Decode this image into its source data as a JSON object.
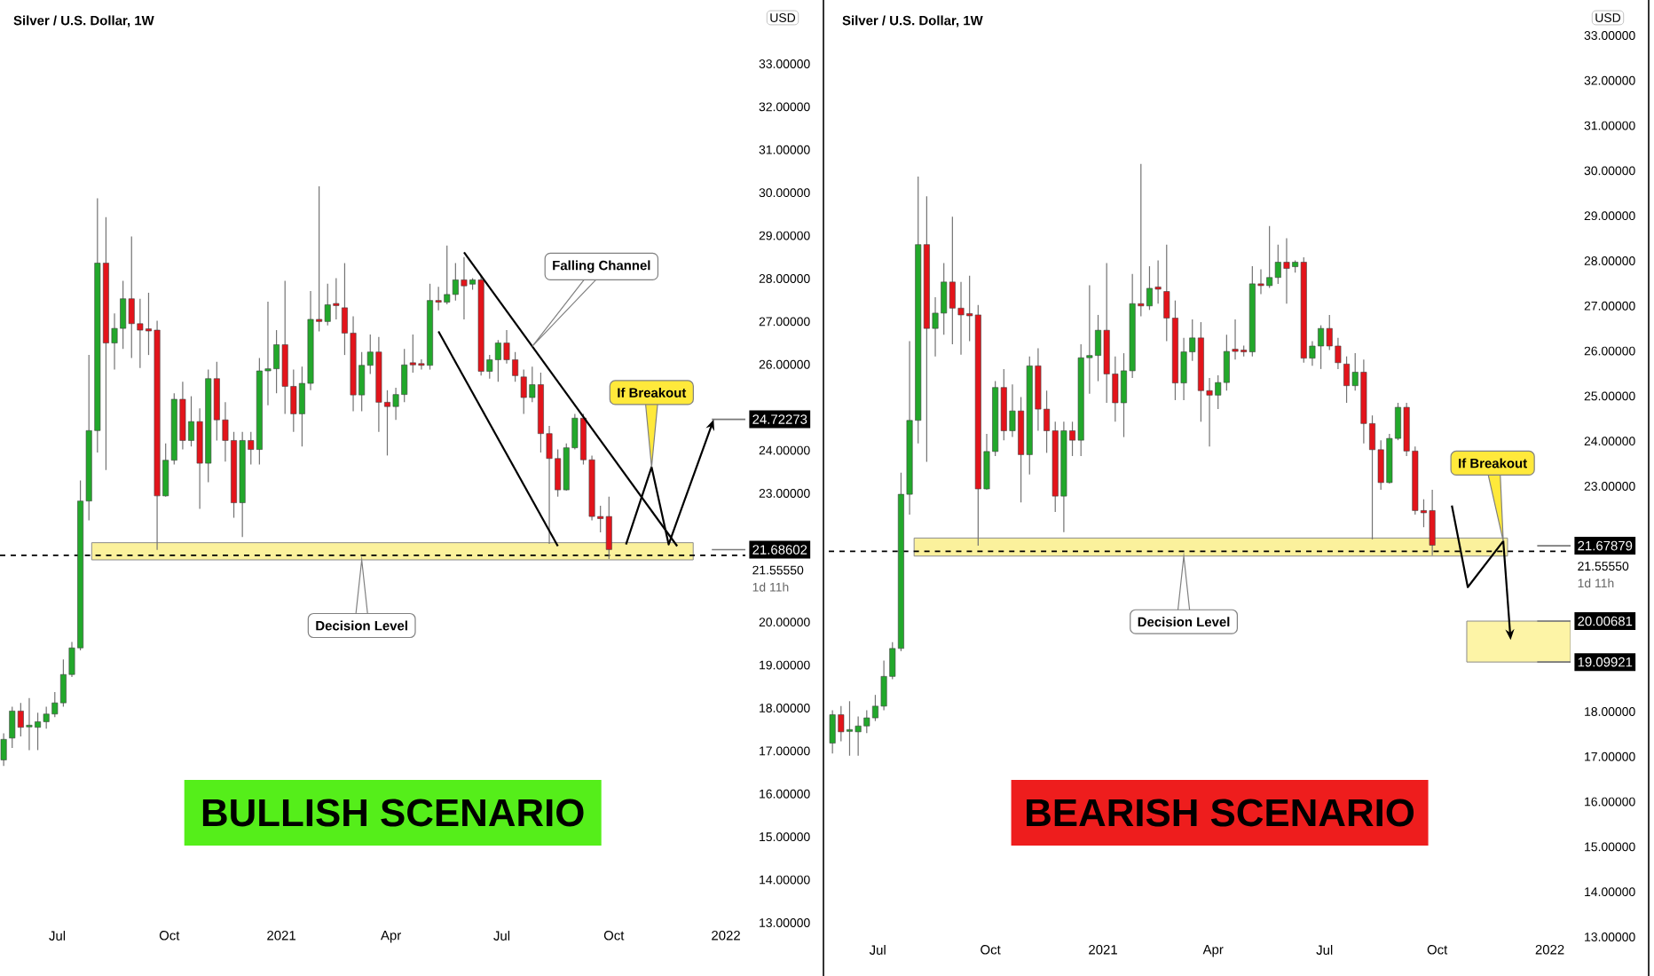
{
  "chart_data": [
    {
      "type": "candlestick",
      "title": "Silver / U.S. Dollar, 1W",
      "x": [
        "2020-05-18",
        "2020-05-25",
        "2020-06-01",
        "2020-06-08",
        "2020-06-15",
        "2020-06-22",
        "2020-06-29",
        "2020-07-06",
        "2020-07-13",
        "2020-07-20",
        "2020-07-27",
        "2020-08-03",
        "2020-08-10",
        "2020-08-17",
        "2020-08-24",
        "2020-08-31",
        "2020-09-07",
        "2020-09-14",
        "2020-09-21",
        "2020-09-28",
        "2020-10-05",
        "2020-10-12",
        "2020-10-19",
        "2020-10-26",
        "2020-11-02",
        "2020-11-09",
        "2020-11-16",
        "2020-11-23",
        "2020-11-30",
        "2020-12-07",
        "2020-12-14",
        "2020-12-21",
        "2020-12-28",
        "2021-01-04",
        "2021-01-11",
        "2021-01-18",
        "2021-01-25",
        "2021-02-01",
        "2021-02-08",
        "2021-02-15",
        "2021-02-22",
        "2021-03-01",
        "2021-03-08",
        "2021-03-15",
        "2021-03-22",
        "2021-03-29",
        "2021-04-05",
        "2021-04-12",
        "2021-04-19",
        "2021-04-26",
        "2021-05-03",
        "2021-05-10",
        "2021-05-17",
        "2021-05-24",
        "2021-05-31",
        "2021-06-07",
        "2021-06-14",
        "2021-06-21",
        "2021-06-28",
        "2021-07-05",
        "2021-07-12",
        "2021-07-19",
        "2021-07-26",
        "2021-08-02",
        "2021-08-09",
        "2021-08-16",
        "2021-08-23",
        "2021-08-30",
        "2021-09-06",
        "2021-09-13",
        "2021-09-20",
        "2021-09-27"
      ],
      "ohlc": [
        [
          16.79,
          17.41,
          16.65,
          17.27
        ],
        [
          17.3,
          18.03,
          17.07,
          17.93
        ],
        [
          17.93,
          18.12,
          17.34,
          17.55
        ],
        [
          17.56,
          18.23,
          17.02,
          17.6
        ],
        [
          17.55,
          17.89,
          17.02,
          17.68
        ],
        [
          17.68,
          18.03,
          17.52,
          17.86
        ],
        [
          17.86,
          18.37,
          17.79,
          18.12
        ],
        [
          18.12,
          19.13,
          18.03,
          18.78
        ],
        [
          18.78,
          19.54,
          18.72,
          19.4
        ],
        [
          19.4,
          23.3,
          19.34,
          22.82
        ],
        [
          22.82,
          26.22,
          22.37,
          24.46
        ],
        [
          24.46,
          29.87,
          23.95,
          28.36
        ],
        [
          28.36,
          29.43,
          23.54,
          26.5
        ],
        [
          26.5,
          27.19,
          25.88,
          26.84
        ],
        [
          26.84,
          27.95,
          26.36,
          27.53
        ],
        [
          27.53,
          28.98,
          26.15,
          26.95
        ],
        [
          26.95,
          27.53,
          25.92,
          26.8
        ],
        [
          26.83,
          27.67,
          26.22,
          26.78
        ],
        [
          26.8,
          27.02,
          21.68,
          22.94
        ],
        [
          22.94,
          24.16,
          22.92,
          23.77
        ],
        [
          23.77,
          25.33,
          23.67,
          25.19
        ],
        [
          25.19,
          25.6,
          24.02,
          24.23
        ],
        [
          24.23,
          25.26,
          24.09,
          24.67
        ],
        [
          24.67,
          24.98,
          22.64,
          23.7
        ],
        [
          23.7,
          25.88,
          23.26,
          25.67
        ],
        [
          25.67,
          26.06,
          24.23,
          24.71
        ],
        [
          24.71,
          25.12,
          23.74,
          24.23
        ],
        [
          24.23,
          24.43,
          22.43,
          22.78
        ],
        [
          22.78,
          24.43,
          21.98,
          24.23
        ],
        [
          24.23,
          24.43,
          23.67,
          24.02
        ],
        [
          24.02,
          26.15,
          23.67,
          25.85
        ],
        [
          25.85,
          27.46,
          25.05,
          25.9
        ],
        [
          25.9,
          26.8,
          25.33,
          26.46
        ],
        [
          26.46,
          27.95,
          24.85,
          25.49
        ],
        [
          25.49,
          25.88,
          24.43,
          24.85
        ],
        [
          24.85,
          25.95,
          24.09,
          25.56
        ],
        [
          25.56,
          27.71,
          25.4,
          27.05
        ],
        [
          27.05,
          30.15,
          26.77,
          27.0
        ],
        [
          27.0,
          27.88,
          26.91,
          27.39
        ],
        [
          27.42,
          28.01,
          27.05,
          27.37
        ],
        [
          27.32,
          28.36,
          26.22,
          26.73
        ],
        [
          26.73,
          27.12,
          24.91,
          25.29
        ],
        [
          25.29,
          26.29,
          24.91,
          25.98
        ],
        [
          25.98,
          26.7,
          25.78,
          26.29
        ],
        [
          26.29,
          26.64,
          24.43,
          25.12
        ],
        [
          25.12,
          25.4,
          23.88,
          25.02
        ],
        [
          25.02,
          25.46,
          24.71,
          25.3
        ],
        [
          25.3,
          26.36,
          25.12,
          25.99
        ],
        [
          26.04,
          26.7,
          25.81,
          25.99
        ],
        [
          26.02,
          26.12,
          25.88,
          25.98
        ],
        [
          25.98,
          27.88,
          25.88,
          27.49
        ],
        [
          27.49,
          27.81,
          27.26,
          27.45
        ],
        [
          27.45,
          28.77,
          27.4,
          27.63
        ],
        [
          27.63,
          28.36,
          27.49,
          27.97
        ],
        [
          27.97,
          28.5,
          27.05,
          27.83
        ],
        [
          27.87,
          28.01,
          27.74,
          27.97
        ],
        [
          27.97,
          28.08,
          25.74,
          25.84
        ],
        [
          25.84,
          26.22,
          25.67,
          26.11
        ],
        [
          26.11,
          26.57,
          25.6,
          26.5
        ],
        [
          26.5,
          26.8,
          26.02,
          26.11
        ],
        [
          26.11,
          26.29,
          25.6,
          25.74
        ],
        [
          25.71,
          25.88,
          24.85,
          25.23
        ],
        [
          25.23,
          25.95,
          25.12,
          25.53
        ],
        [
          25.53,
          25.81,
          23.95,
          24.39
        ],
        [
          24.39,
          24.57,
          21.82,
          23.81
        ],
        [
          23.81,
          24.02,
          22.92,
          23.08
        ],
        [
          23.08,
          24.16,
          23.06,
          24.06
        ],
        [
          24.06,
          24.85,
          24.02,
          24.75
        ],
        [
          24.75,
          24.85,
          23.67,
          23.78
        ],
        [
          23.78,
          23.88,
          22.37,
          22.46
        ],
        [
          22.46,
          22.71,
          22.09,
          22.41
        ],
        [
          22.46,
          22.92,
          21.47,
          21.69
        ]
      ],
      "series": [
        {
          "type": "line",
          "color": "#000000",
          "x": [
            "2021-05-31",
            "2021-11-22"
          ],
          "values": [
            28.61,
            21.77
          ]
        },
        {
          "type": "line",
          "color": "#000000",
          "x": [
            "2021-05-10",
            "2021-08-16"
          ],
          "values": [
            26.77,
            21.77
          ]
        },
        {
          "type": "line",
          "color": "#000000",
          "x": [
            "2021-10-11",
            "2021-11-01",
            "2021-11-15",
            "2021-12-22"
          ],
          "values": [
            21.81,
            23.61,
            21.81,
            24.72
          ]
        }
      ],
      "xlim": [
        "2020-05-15",
        "2022-01-17"
      ],
      "xticks": [
        {
          "value": "2020-07-01",
          "label": "Jul"
        },
        {
          "value": "2020-10-01",
          "label": "Oct"
        },
        {
          "value": "2021-01-01",
          "label": "2021"
        },
        {
          "value": "2021-04-01",
          "label": "Apr"
        },
        {
          "value": "2021-07-01",
          "label": "Jul"
        },
        {
          "value": "2021-10-01",
          "label": "Oct"
        },
        {
          "value": "2022-01-01",
          "label": "2022"
        }
      ],
      "ylim": [
        13,
        33
      ],
      "yticks": [
        {
          "value": 13,
          "label": "13.00000"
        },
        {
          "value": 14,
          "label": "14.00000"
        },
        {
          "value": 15,
          "label": "15.00000"
        },
        {
          "value": 16,
          "label": "16.00000"
        },
        {
          "value": 17,
          "label": "17.00000"
        },
        {
          "value": 18,
          "label": "18.00000"
        },
        {
          "value": 19,
          "label": "19.00000"
        },
        {
          "value": 20,
          "label": "20.00000"
        },
        {
          "value": 23,
          "label": "23.00000"
        },
        {
          "value": 24,
          "label": "24.00000"
        },
        {
          "value": 26,
          "label": "26.00000"
        },
        {
          "value": 27,
          "label": "27.00000"
        },
        {
          "value": 28,
          "label": "28.00000"
        },
        {
          "value": 29,
          "label": "29.00000"
        },
        {
          "value": 30,
          "label": "30.00000"
        },
        {
          "value": 31,
          "label": "31.00000"
        },
        {
          "value": 32,
          "label": "32.00000"
        },
        {
          "value": 33,
          "label": "33.00000"
        }
      ],
      "ref_lines": [
        {
          "axis": "y",
          "value": 21.5555,
          "label": "21.55550",
          "color": "#000000",
          "line_style": "dashed"
        },
        {
          "axis": "y",
          "value": 24.72273,
          "label": "24.72273",
          "color": "#787878",
          "line_style": "solid"
        },
        {
          "axis": "y",
          "value": 21.68602,
          "label": "21.68602",
          "color": "#787878",
          "line_style": "solid"
        }
      ],
      "bands": [
        {
          "axis": "y",
          "from": 21.45,
          "to": 21.85,
          "color": "#fbf19c"
        }
      ],
      "annotations": [
        "Falling Channel",
        {
          "text": "If Breakout",
          "x": "2021-11-01",
          "y": 23.61
        },
        {
          "text": "Decision Level",
          "x": "2021-03-08",
          "y": 21.45
        },
        "BULLISH SCENARIO",
        "1d 11h",
        "USD"
      ]
    },
    {
      "type": "candlestick",
      "title": "Silver / U.S. Dollar, 1W",
      "x": [
        "2020-05-25",
        "2020-06-01",
        "2020-06-08",
        "2020-06-15",
        "2020-06-22",
        "2020-06-29",
        "2020-07-06",
        "2020-07-13",
        "2020-07-20",
        "2020-07-27",
        "2020-08-03",
        "2020-08-10",
        "2020-08-17",
        "2020-08-24",
        "2020-08-31",
        "2020-09-07",
        "2020-09-14",
        "2020-09-21",
        "2020-09-28",
        "2020-10-05",
        "2020-10-12",
        "2020-10-19",
        "2020-10-26",
        "2020-11-02",
        "2020-11-09",
        "2020-11-16",
        "2020-11-23",
        "2020-11-30",
        "2020-12-07",
        "2020-12-14",
        "2020-12-21",
        "2020-12-28",
        "2021-01-04",
        "2021-01-11",
        "2021-01-18",
        "2021-01-25",
        "2021-02-01",
        "2021-02-08",
        "2021-02-15",
        "2021-02-22",
        "2021-03-01",
        "2021-03-08",
        "2021-03-15",
        "2021-03-22",
        "2021-03-29",
        "2021-04-05",
        "2021-04-12",
        "2021-04-19",
        "2021-04-26",
        "2021-05-03",
        "2021-05-10",
        "2021-05-17",
        "2021-05-24",
        "2021-05-31",
        "2021-06-07",
        "2021-06-14",
        "2021-06-21",
        "2021-06-28",
        "2021-07-05",
        "2021-07-12",
        "2021-07-19",
        "2021-07-26",
        "2021-08-02",
        "2021-08-09",
        "2021-08-16",
        "2021-08-23",
        "2021-08-30",
        "2021-09-06",
        "2021-09-13",
        "2021-09-20",
        "2021-09-27"
      ],
      "ohlc": [
        [
          17.3,
          18.03,
          17.07,
          17.93
        ],
        [
          17.93,
          18.12,
          17.34,
          17.55
        ],
        [
          17.56,
          18.23,
          17.02,
          17.6
        ],
        [
          17.55,
          17.89,
          17.02,
          17.68
        ],
        [
          17.68,
          18.03,
          17.52,
          17.86
        ],
        [
          17.86,
          18.37,
          17.79,
          18.12
        ],
        [
          18.12,
          19.13,
          18.03,
          18.78
        ],
        [
          18.78,
          19.54,
          18.72,
          19.4
        ],
        [
          19.4,
          23.3,
          19.34,
          22.82
        ],
        [
          22.82,
          26.22,
          22.37,
          24.46
        ],
        [
          24.46,
          29.87,
          23.95,
          28.36
        ],
        [
          28.36,
          29.43,
          23.54,
          26.5
        ],
        [
          26.5,
          27.19,
          25.88,
          26.84
        ],
        [
          26.84,
          27.95,
          26.36,
          27.53
        ],
        [
          27.53,
          28.98,
          26.15,
          26.95
        ],
        [
          26.95,
          27.53,
          25.92,
          26.8
        ],
        [
          26.83,
          27.67,
          26.22,
          26.78
        ],
        [
          26.8,
          27.02,
          21.68,
          22.94
        ],
        [
          22.94,
          24.16,
          22.92,
          23.77
        ],
        [
          23.77,
          25.33,
          23.67,
          25.19
        ],
        [
          25.19,
          25.6,
          24.02,
          24.23
        ],
        [
          24.23,
          25.26,
          24.09,
          24.67
        ],
        [
          24.67,
          24.98,
          22.64,
          23.7
        ],
        [
          23.7,
          25.88,
          23.26,
          25.67
        ],
        [
          25.67,
          26.06,
          24.23,
          24.71
        ],
        [
          24.71,
          25.12,
          23.74,
          24.23
        ],
        [
          24.23,
          24.43,
          22.43,
          22.78
        ],
        [
          22.78,
          24.43,
          21.98,
          24.23
        ],
        [
          24.23,
          24.43,
          23.67,
          24.02
        ],
        [
          24.02,
          26.15,
          23.67,
          25.85
        ],
        [
          25.85,
          27.46,
          25.05,
          25.9
        ],
        [
          25.9,
          26.8,
          25.33,
          26.46
        ],
        [
          26.46,
          27.95,
          24.85,
          25.49
        ],
        [
          25.49,
          25.88,
          24.43,
          24.85
        ],
        [
          24.85,
          25.95,
          24.09,
          25.56
        ],
        [
          25.56,
          27.71,
          25.4,
          27.05
        ],
        [
          27.05,
          30.15,
          26.77,
          27.0
        ],
        [
          27.0,
          27.88,
          26.91,
          27.39
        ],
        [
          27.42,
          28.01,
          27.05,
          27.37
        ],
        [
          27.32,
          28.36,
          26.22,
          26.73
        ],
        [
          26.73,
          27.12,
          24.91,
          25.29
        ],
        [
          25.29,
          26.29,
          24.91,
          25.98
        ],
        [
          25.98,
          26.7,
          25.78,
          26.29
        ],
        [
          26.29,
          26.64,
          24.43,
          25.12
        ],
        [
          25.12,
          25.4,
          23.88,
          25.02
        ],
        [
          25.02,
          25.46,
          24.71,
          25.3
        ],
        [
          25.3,
          26.36,
          25.12,
          25.99
        ],
        [
          26.04,
          26.7,
          25.81,
          25.99
        ],
        [
          26.02,
          26.12,
          25.88,
          25.98
        ],
        [
          25.98,
          27.88,
          25.88,
          27.49
        ],
        [
          27.49,
          27.81,
          27.26,
          27.45
        ],
        [
          27.45,
          28.77,
          27.4,
          27.63
        ],
        [
          27.63,
          28.36,
          27.49,
          27.97
        ],
        [
          27.97,
          28.5,
          27.05,
          27.83
        ],
        [
          27.87,
          28.01,
          27.74,
          27.97
        ],
        [
          27.97,
          28.08,
          25.74,
          25.84
        ],
        [
          25.84,
          26.22,
          25.67,
          26.11
        ],
        [
          26.11,
          26.57,
          25.6,
          26.5
        ],
        [
          26.5,
          26.8,
          26.02,
          26.11
        ],
        [
          26.11,
          26.29,
          25.6,
          25.74
        ],
        [
          25.71,
          25.88,
          24.85,
          25.23
        ],
        [
          25.23,
          25.95,
          25.12,
          25.53
        ],
        [
          25.53,
          25.81,
          23.95,
          24.39
        ],
        [
          24.39,
          24.57,
          21.82,
          23.81
        ],
        [
          23.81,
          24.02,
          22.92,
          23.08
        ],
        [
          23.08,
          24.16,
          23.06,
          24.06
        ],
        [
          24.06,
          24.85,
          24.02,
          24.75
        ],
        [
          24.75,
          24.85,
          23.67,
          23.78
        ],
        [
          23.78,
          23.88,
          22.37,
          22.46
        ],
        [
          22.46,
          22.71,
          22.09,
          22.41
        ],
        [
          22.46,
          22.92,
          21.47,
          21.69
        ]
      ],
      "series": [
        {
          "type": "line",
          "color": "#000000",
          "x": [
            "2021-10-13",
            "2021-10-26",
            "2021-11-24",
            "2021-11-30"
          ],
          "values": [
            22.57,
            20.76,
            21.78,
            19.59
          ]
        }
      ],
      "xlim": [
        "2020-05-22",
        "2022-01-18"
      ],
      "xticks": [
        {
          "value": "2020-07-01",
          "label": "Jul"
        },
        {
          "value": "2020-10-01",
          "label": "Oct"
        },
        {
          "value": "2021-01-01",
          "label": "2021"
        },
        {
          "value": "2021-04-01",
          "label": "Apr"
        },
        {
          "value": "2021-07-01",
          "label": "Jul"
        },
        {
          "value": "2021-10-01",
          "label": "Oct"
        },
        {
          "value": "2022-01-01",
          "label": "2022"
        }
      ],
      "ylim": [
        13,
        33
      ],
      "yticks": [
        {
          "value": 13,
          "label": "13.00000"
        },
        {
          "value": 14,
          "label": "14.00000"
        },
        {
          "value": 15,
          "label": "15.00000"
        },
        {
          "value": 16,
          "label": "16.00000"
        },
        {
          "value": 17,
          "label": "17.00000"
        },
        {
          "value": 18,
          "label": "18.00000"
        },
        {
          "value": 23,
          "label": "23.00000"
        },
        {
          "value": 24,
          "label": "24.00000"
        },
        {
          "value": 25,
          "label": "25.00000"
        },
        {
          "value": 26,
          "label": "26.00000"
        },
        {
          "value": 27,
          "label": "27.00000"
        },
        {
          "value": 28,
          "label": "28.00000"
        },
        {
          "value": 29,
          "label": "29.00000"
        },
        {
          "value": 30,
          "label": "30.00000"
        },
        {
          "value": 31,
          "label": "31.00000"
        },
        {
          "value": 32,
          "label": "32.00000"
        },
        {
          "value": 33,
          "label": "33.00000"
        }
      ],
      "ref_lines": [
        {
          "axis": "y",
          "value": 21.5555,
          "label": "21.55550",
          "color": "#000000",
          "line_style": "dashed"
        },
        {
          "axis": "y",
          "value": 21.67879,
          "label": "21.67879",
          "color": "#787878",
          "line_style": "solid"
        },
        {
          "axis": "y",
          "value": 20.00681,
          "label": "20.00681",
          "color": "#787878",
          "line_style": "solid"
        },
        {
          "axis": "y",
          "value": 19.09921,
          "label": "19.09921",
          "color": "#787878",
          "line_style": "solid"
        }
      ],
      "bands": [
        {
          "axis": "y",
          "from": 21.45,
          "to": 21.85,
          "color": "#fbf19c"
        },
        {
          "axis": "y",
          "from": 19.09921,
          "to": 20.00681,
          "color": "#fdf4a6"
        }
      ],
      "annotations": [
        {
          "text": "If Breakout",
          "x": "2021-11-24",
          "y": 21.78
        },
        {
          "text": "Decision Level",
          "x": "2021-03-08",
          "y": 21.45
        },
        "BEARISH SCENARIO",
        "1d 11h",
        "USD"
      ]
    }
  ]
}
